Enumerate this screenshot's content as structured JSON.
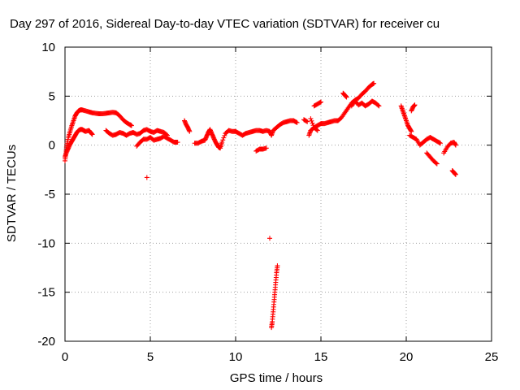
{
  "chart_data": {
    "type": "scatter",
    "title": "Day 297 of 2016, Sidereal Day-to-day VTEC variation (SDTVAR) for receiver cu",
    "xlabel": "GPS time / hours",
    "ylabel": "SDTVAR / TECUs",
    "xlim": [
      0,
      25
    ],
    "ylim": [
      -20,
      10
    ],
    "xticks": [
      0,
      5,
      10,
      15,
      20,
      25
    ],
    "yticks": [
      -20,
      -15,
      -10,
      -5,
      0,
      5,
      10
    ],
    "xtick_labels": [
      "0",
      "5",
      "10",
      "15",
      "20",
      "25"
    ],
    "ytick_labels": [
      "-20",
      "-15",
      "-10",
      "-5",
      "0",
      "5",
      "10"
    ],
    "grid": true,
    "marker": "plus",
    "series_color": "#ff0000",
    "series": [
      {
        "name": "SDTVAR",
        "segments": [
          [
            [
              0.0,
              -1.6
            ],
            [
              0.05,
              -0.8
            ],
            [
              0.1,
              0.0
            ],
            [
              0.2,
              0.8
            ],
            [
              0.3,
              1.4
            ],
            [
              0.4,
              2.0
            ],
            [
              0.5,
              2.5
            ],
            [
              0.6,
              3.0
            ],
            [
              0.7,
              3.3
            ],
            [
              0.8,
              3.5
            ],
            [
              0.9,
              3.6
            ],
            [
              1.0,
              3.6
            ],
            [
              1.2,
              3.5
            ],
            [
              1.4,
              3.4
            ],
            [
              1.6,
              3.3
            ],
            [
              1.8,
              3.25
            ],
            [
              2.0,
              3.2
            ],
            [
              2.2,
              3.2
            ],
            [
              2.4,
              3.25
            ],
            [
              2.6,
              3.3
            ],
            [
              2.8,
              3.35
            ],
            [
              3.0,
              3.3
            ],
            [
              3.2,
              3.0
            ],
            [
              3.4,
              2.6
            ],
            [
              3.6,
              2.3
            ],
            [
              3.8,
              2.1
            ],
            [
              3.9,
              2.0
            ]
          ],
          [
            [
              0.0,
              -1.2
            ],
            [
              0.1,
              -0.7
            ],
            [
              0.2,
              -0.3
            ],
            [
              0.3,
              0.1
            ],
            [
              0.4,
              0.4
            ],
            [
              0.5,
              0.7
            ],
            [
              0.6,
              1.0
            ],
            [
              0.7,
              1.3
            ],
            [
              0.8,
              1.5
            ],
            [
              0.9,
              1.6
            ],
            [
              1.0,
              1.6
            ],
            [
              1.1,
              1.5
            ],
            [
              1.2,
              1.4
            ],
            [
              1.4,
              1.5
            ],
            [
              1.5,
              1.3
            ],
            [
              1.6,
              1.1
            ]
          ],
          [
            [
              2.4,
              1.5
            ],
            [
              2.6,
              1.2
            ],
            [
              2.8,
              1.0
            ],
            [
              3.0,
              1.1
            ],
            [
              3.2,
              1.3
            ],
            [
              3.4,
              1.2
            ],
            [
              3.6,
              1.0
            ],
            [
              3.8,
              1.2
            ],
            [
              4.0,
              1.3
            ],
            [
              4.2,
              1.1
            ],
            [
              4.4,
              1.2
            ],
            [
              4.6,
              1.5
            ],
            [
              4.8,
              1.6
            ],
            [
              5.0,
              1.4
            ],
            [
              5.2,
              1.3
            ],
            [
              5.4,
              1.5
            ],
            [
              5.6,
              1.4
            ],
            [
              5.8,
              1.3
            ],
            [
              6.0,
              1.0
            ]
          ],
          [
            [
              4.2,
              -0.1
            ],
            [
              4.4,
              0.3
            ],
            [
              4.6,
              0.6
            ],
            [
              4.8,
              0.6
            ],
            [
              5.0,
              0.8
            ],
            [
              5.2,
              0.5
            ],
            [
              5.4,
              0.6
            ],
            [
              5.6,
              0.7
            ],
            [
              5.8,
              0.9
            ],
            [
              6.0,
              0.7
            ],
            [
              6.2,
              0.5
            ],
            [
              6.4,
              0.3
            ],
            [
              6.6,
              0.3
            ]
          ],
          [
            [
              7.0,
              2.5
            ],
            [
              7.1,
              2.1
            ],
            [
              7.2,
              1.8
            ],
            [
              7.3,
              1.4
            ]
          ],
          [
            [
              7.6,
              0.2
            ],
            [
              7.8,
              0.2
            ],
            [
              8.0,
              0.4
            ],
            [
              8.2,
              0.5
            ],
            [
              8.3,
              0.9
            ],
            [
              8.4,
              1.3
            ],
            [
              8.5,
              1.6
            ],
            [
              8.6,
              1.2
            ],
            [
              8.7,
              0.8
            ],
            [
              8.8,
              0.4
            ],
            [
              8.9,
              0.1
            ],
            [
              9.0,
              -0.2
            ],
            [
              9.1,
              -0.3
            ],
            [
              9.2,
              0.3
            ],
            [
              9.4,
              1.2
            ],
            [
              9.6,
              1.5
            ],
            [
              9.8,
              1.4
            ],
            [
              10.0,
              1.4
            ],
            [
              10.2,
              1.2
            ],
            [
              10.4,
              1.0
            ],
            [
              10.6,
              1.2
            ],
            [
              10.8,
              1.3
            ],
            [
              11.0,
              1.4
            ],
            [
              11.2,
              1.5
            ],
            [
              11.4,
              1.5
            ],
            [
              11.6,
              1.4
            ],
            [
              11.8,
              1.5
            ],
            [
              12.0,
              1.4
            ],
            [
              12.1,
              1.0
            ],
            [
              12.2,
              1.5
            ],
            [
              12.4,
              1.8
            ],
            [
              12.6,
              2.1
            ],
            [
              12.8,
              2.3
            ],
            [
              13.0,
              2.4
            ],
            [
              13.2,
              2.5
            ],
            [
              13.4,
              2.5
            ],
            [
              13.6,
              2.3
            ]
          ],
          [
            [
              11.2,
              -0.6
            ],
            [
              11.4,
              -0.4
            ],
            [
              11.6,
              -0.4
            ],
            [
              11.8,
              -0.3
            ]
          ],
          [
            [
              14.0,
              2.6
            ],
            [
              14.2,
              2.4
            ]
          ],
          [
            [
              14.3,
              1.0
            ],
            [
              14.4,
              1.5
            ],
            [
              14.6,
              1.8
            ],
            [
              14.8,
              2.0
            ],
            [
              15.0,
              2.2
            ],
            [
              15.2,
              2.2
            ],
            [
              15.4,
              2.3
            ],
            [
              15.6,
              2.4
            ],
            [
              15.8,
              2.5
            ],
            [
              16.0,
              2.5
            ],
            [
              16.2,
              2.8
            ],
            [
              16.4,
              3.3
            ],
            [
              16.6,
              3.8
            ],
            [
              16.8,
              4.3
            ],
            [
              17.0,
              4.6
            ],
            [
              17.2,
              4.8
            ],
            [
              17.4,
              5.2
            ],
            [
              17.6,
              5.5
            ],
            [
              17.8,
              5.9
            ],
            [
              18.0,
              6.2
            ],
            [
              18.1,
              6.3
            ]
          ],
          [
            [
              14.4,
              2.7
            ],
            [
              14.6,
              1.8
            ],
            [
              14.8,
              1.5
            ]
          ],
          [
            [
              14.6,
              4.0
            ],
            [
              14.8,
              4.2
            ],
            [
              15.0,
              4.4
            ]
          ],
          [
            [
              16.3,
              5.3
            ],
            [
              16.4,
              5.1
            ],
            [
              16.5,
              4.9
            ]
          ],
          [
            [
              16.8,
              4.0
            ],
            [
              17.0,
              4.5
            ],
            [
              17.2,
              4.1
            ],
            [
              17.4,
              4.3
            ],
            [
              17.6,
              4.0
            ],
            [
              17.8,
              4.2
            ],
            [
              18.0,
              4.5
            ],
            [
              18.2,
              4.3
            ],
            [
              18.4,
              4.0
            ]
          ],
          [
            [
              19.7,
              4.0
            ],
            [
              19.8,
              3.5
            ],
            [
              19.9,
              3.0
            ],
            [
              20.0,
              2.5
            ],
            [
              20.1,
              2.0
            ],
            [
              20.2,
              1.7
            ],
            [
              20.3,
              1.4
            ]
          ],
          [
            [
              20.3,
              3.5
            ],
            [
              20.4,
              3.9
            ],
            [
              20.5,
              4.1
            ]
          ],
          [
            [
              20.2,
              1.0
            ],
            [
              20.4,
              0.8
            ],
            [
              20.6,
              0.6
            ],
            [
              20.8,
              0.0
            ],
            [
              21.0,
              0.3
            ],
            [
              21.2,
              0.6
            ],
            [
              21.4,
              0.8
            ],
            [
              21.6,
              0.6
            ],
            [
              21.8,
              0.4
            ],
            [
              22.0,
              0.2
            ]
          ],
          [
            [
              21.2,
              -0.8
            ],
            [
              21.4,
              -1.2
            ],
            [
              21.6,
              -1.6
            ],
            [
              21.8,
              -1.9
            ]
          ],
          [
            [
              22.2,
              -0.8
            ],
            [
              22.4,
              -0.2
            ],
            [
              22.6,
              0.2
            ],
            [
              22.8,
              0.3
            ],
            [
              22.9,
              0.0
            ]
          ],
          [
            [
              22.7,
              -2.6
            ],
            [
              22.8,
              -2.8
            ],
            [
              22.9,
              -3.0
            ]
          ],
          [
            [
              12.1,
              -18.6
            ],
            [
              12.15,
              -18.0
            ],
            [
              12.2,
              -17.0
            ],
            [
              12.25,
              -16.0
            ],
            [
              12.3,
              -15.0
            ],
            [
              12.35,
              -14.0
            ],
            [
              12.4,
              -13.0
            ],
            [
              12.45,
              -12.3
            ]
          ]
        ],
        "points": [
          [
            4.8,
            -3.3
          ],
          [
            12.0,
            -9.5
          ]
        ]
      }
    ]
  }
}
